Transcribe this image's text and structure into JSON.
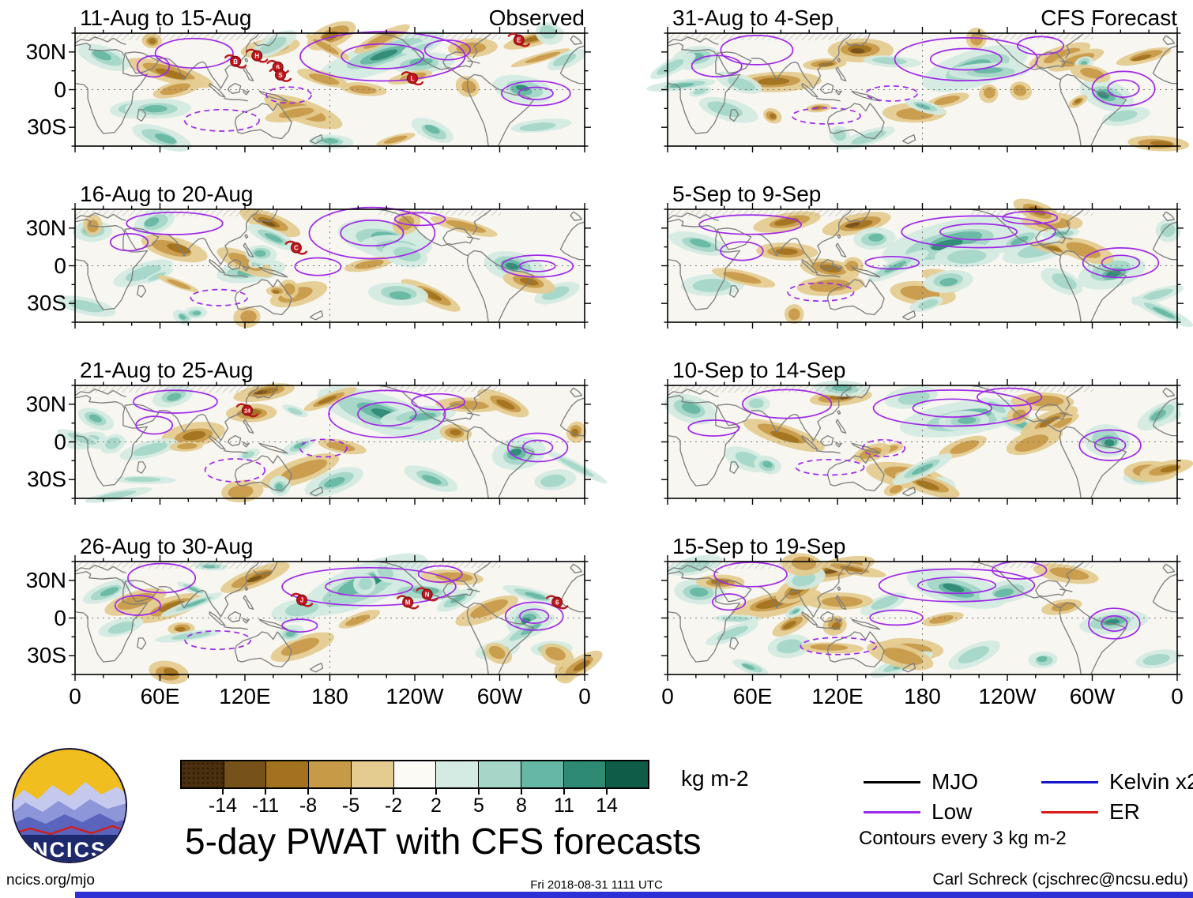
{
  "figure": {
    "title": "5-day PWAT with CFS forecasts",
    "site": "ncics.org/mjo",
    "timestamp": "Fri 2018-08-31 1111 UTC",
    "credit": "Carl Schreck (cjschrec@ncsu.edu)",
    "logo_text": "NCICS"
  },
  "columns": [
    {
      "header": "Observed",
      "panels": [
        "11-Aug to 15-Aug",
        "16-Aug to 20-Aug",
        "21-Aug to 25-Aug",
        "26-Aug to 30-Aug"
      ]
    },
    {
      "header": "CFS Forecast",
      "panels": [
        "31-Aug to 4-Sep",
        "5-Sep to 9-Sep",
        "10-Sep to 14-Sep",
        "15-Sep to 19-Sep"
      ]
    }
  ],
  "axes": {
    "y_ticks": [
      "30N",
      "0",
      "30S"
    ],
    "x_ticks": [
      "0",
      "60E",
      "120E",
      "180",
      "120W",
      "60W",
      "0"
    ]
  },
  "colorbar": {
    "units": "kg m-2",
    "tick_labels": [
      "-14",
      "-11",
      "-8",
      "-5",
      "-2",
      "2",
      "5",
      "8",
      "11",
      "14"
    ],
    "segment_colors": [
      "#4a300e",
      "#76521a",
      "#a3721f",
      "#c79a48",
      "#e4cb90",
      "#fbfaf5",
      "#d3ebe2",
      "#a5d6c8",
      "#66b7a4",
      "#2f8a74",
      "#0f5c49"
    ]
  },
  "legend": {
    "items": [
      {
        "label": "MJO",
        "color": "#000000"
      },
      {
        "label": "Low",
        "color": "#a028e8"
      },
      {
        "label": "Kelvin x2",
        "color": "#1515cc"
      },
      {
        "label": "ER",
        "color": "#d81a1a"
      }
    ],
    "note": "Contours every 3 kg m-2"
  },
  "chart_data": {
    "type": "heatmap",
    "title": "5-day PWAT with CFS forecasts",
    "variable": "5-day precipitable water (PWAT) anomaly, observed and CFS forecast",
    "units": "kg m-2",
    "colorbar_ticks": [
      -14,
      -11,
      -8,
      -5,
      -2,
      2,
      5,
      8,
      11,
      14
    ],
    "contour_interval": 3,
    "contour_series": [
      "MJO",
      "Low",
      "Kelvin x2",
      "ER"
    ],
    "lat_tick_labels": [
      "30N",
      "0",
      "30S"
    ],
    "lon_tick_labels": [
      "0",
      "60E",
      "120E",
      "180",
      "120W",
      "60W",
      "0"
    ],
    "panels": [
      {
        "column": "Observed",
        "period": "11-Aug to 15-Aug",
        "storm_symbols": [
          {
            "label": "B",
            "x": 0.315,
            "y": 0.25
          },
          {
            "label": "H",
            "x": 0.357,
            "y": 0.2
          },
          {
            "label": "6",
            "x": 0.398,
            "y": 0.3
          },
          {
            "label": "S",
            "x": 0.403,
            "y": 0.37
          },
          {
            "label": "L",
            "x": 0.662,
            "y": 0.4
          },
          {
            "label": "E",
            "x": 0.871,
            "y": 0.06
          }
        ]
      },
      {
        "column": "Observed",
        "period": "16-Aug to 20-Aug",
        "storm_symbols": [
          {
            "label": "C",
            "x": 0.434,
            "y": 0.34
          }
        ]
      },
      {
        "column": "Observed",
        "period": "21-Aug to 25-Aug",
        "storm_symbols": [
          {
            "label": "24",
            "x": 0.338,
            "y": 0.22
          }
        ]
      },
      {
        "column": "Observed",
        "period": "26-Aug to 30-Aug",
        "storm_symbols": [
          {
            "label": "J",
            "x": 0.445,
            "y": 0.34
          },
          {
            "label": "M",
            "x": 0.653,
            "y": 0.36
          },
          {
            "label": "N",
            "x": 0.691,
            "y": 0.29
          },
          {
            "label": "6",
            "x": 0.946,
            "y": 0.36
          }
        ]
      },
      {
        "column": "CFS Forecast",
        "period": "31-Aug to 4-Sep",
        "storm_symbols": []
      },
      {
        "column": "CFS Forecast",
        "period": "5-Sep to 9-Sep",
        "storm_symbols": []
      },
      {
        "column": "CFS Forecast",
        "period": "10-Sep to 14-Sep",
        "storm_symbols": []
      },
      {
        "column": "CFS Forecast",
        "period": "15-Sep to 19-Sep",
        "storm_symbols": []
      }
    ]
  }
}
